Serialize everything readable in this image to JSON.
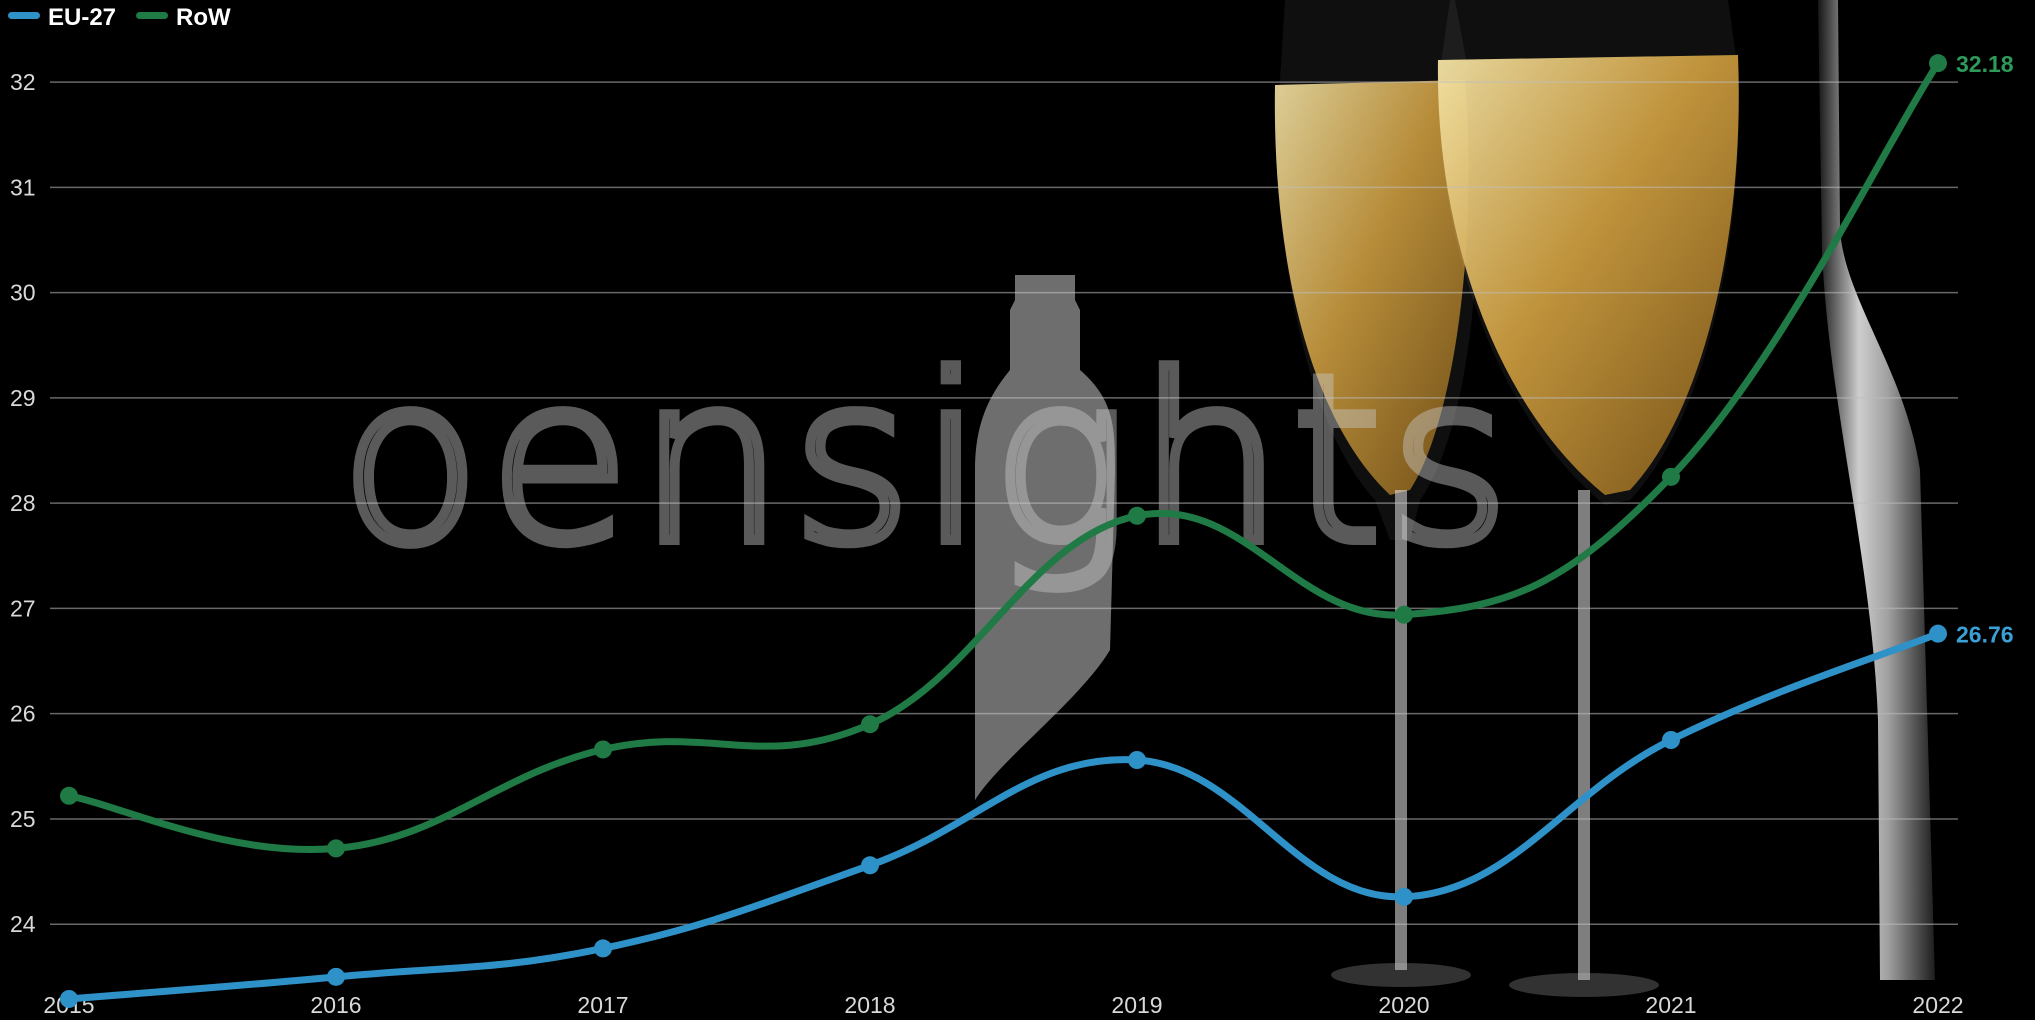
{
  "watermark": "oensights",
  "chart_data": {
    "type": "line",
    "x": [
      "2015",
      "2016",
      "2017",
      "2018",
      "2019",
      "2020",
      "2021",
      "2022"
    ],
    "series": [
      {
        "name": "EU-27",
        "color": "#2e91c7",
        "values": [
          23.29,
          23.5,
          23.77,
          24.56,
          25.56,
          24.26,
          25.75,
          26.76
        ]
      },
      {
        "name": "RoW",
        "color": "#1f7a45",
        "values": [
          25.22,
          24.72,
          25.66,
          25.9,
          27.88,
          26.94,
          28.25,
          32.18
        ]
      }
    ],
    "end_labels": [
      "26.76",
      "32.18"
    ],
    "y_ticks": [
      "24",
      "25",
      "26",
      "27",
      "28",
      "29",
      "30",
      "31",
      "32"
    ],
    "ylim": [
      23.28,
      32.78
    ],
    "legend_position": "top-left",
    "grid": true,
    "smooth": true,
    "background": "dark photo of two champagne flutes and a bottle"
  }
}
